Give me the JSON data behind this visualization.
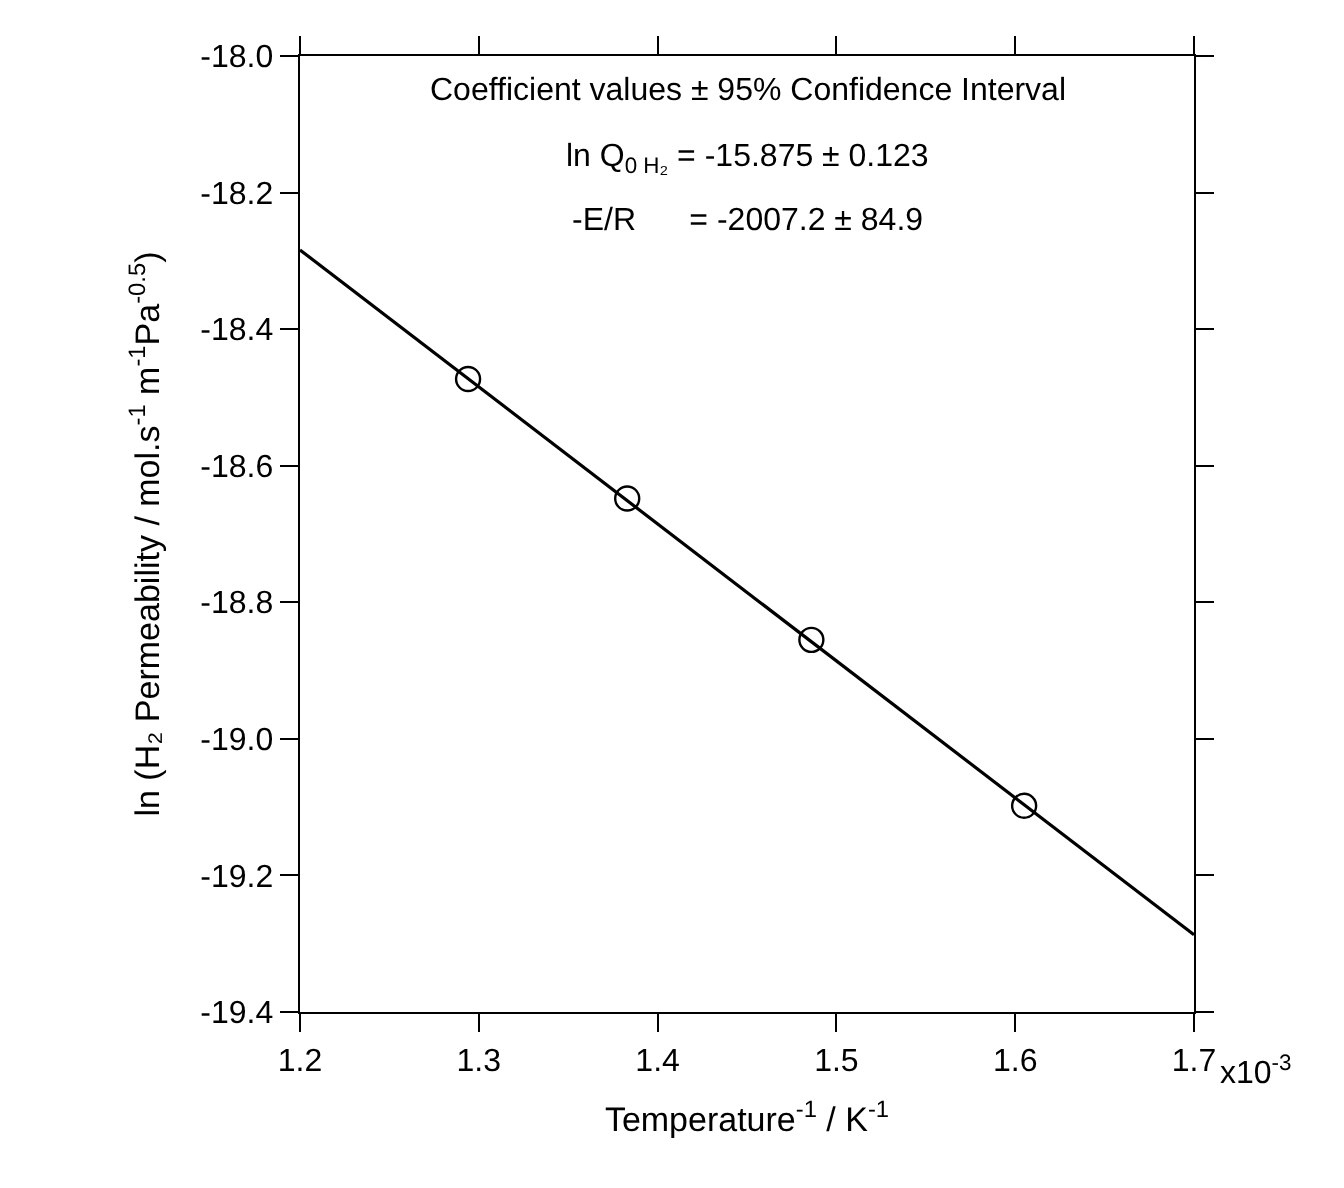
{
  "chart_data": {
    "type": "scatter",
    "xlabel": "Temperature$^{-1}$ / K$^{-1}$",
    "ylabel": "ln (H₂ Permeability / mol.s$^{-1}$ m$^{-1}$Pa$^{-0.5}$)",
    "annotations": [
      "Coefficient values ± 95% Confidence Interval",
      "ln Q$_{0 H₂}$ = -15.875 ± 0.123",
      "-E/R      = -2007.2 ± 84.9",
      "x10$^{-3}$"
    ],
    "series": [
      {
        "type": "scatter",
        "color": "#000000",
        "marker": "circle",
        "x": [
          1.294,
          1.383,
          1.486,
          1.605
        ],
        "values": [
          -18.473,
          -18.648,
          -18.855,
          -19.098
        ]
      },
      {
        "type": "line",
        "color": "#000000",
        "marker": "none",
        "line_style": "solid",
        "x": [
          1.2,
          1.7
        ],
        "values": [
          -18.284,
          -19.287
        ]
      }
    ],
    "xlim": [
      1.2,
      1.7
    ],
    "xticks": [
      1.2,
      1.3,
      1.4,
      1.5,
      1.6,
      1.7
    ],
    "ylim": [
      -19.4,
      -18.0
    ],
    "yticks": [
      {
        "value": -18.0,
        "label": "-18.0"
      },
      -18.2,
      -18.4,
      -18.6,
      -18.8,
      {
        "value": -19.0,
        "label": "-19.0"
      },
      -19.2,
      -19.4
    ]
  }
}
